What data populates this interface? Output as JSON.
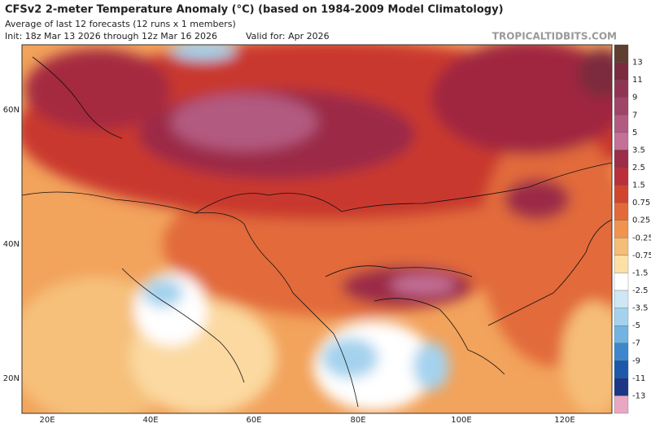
{
  "header": {
    "title": "CFSv2 2-meter Temperature Anomaly (°C) (based on 1984-2009 Model Climatology)",
    "subtitle": "Average of last 12 forecasts (12 runs x 1 members)",
    "init": "Init: 18z Mar 13 2026 through 12z Mar 16 2026",
    "valid": "Valid for: Apr 2026",
    "site": "TROPICALTIDBITS.COM"
  },
  "map": {
    "lon_labels": [
      "20E",
      "40E",
      "60E",
      "80E",
      "100E",
      "120E"
    ],
    "lat_labels": [
      "60N",
      "40N",
      "20N"
    ]
  },
  "colorbar": {
    "labels": [
      "13",
      "11",
      "9",
      "7",
      "5",
      "3.5",
      "2.5",
      "1.5",
      "0.75",
      "0.25",
      "-0.25",
      "-0.75",
      "-1.5",
      "-2.5",
      "-3.5",
      "-5",
      "-7",
      "-9",
      "-11",
      "-13"
    ],
    "colors": [
      "#5e3f30",
      "#7b2b3e",
      "#8f3553",
      "#a04468",
      "#b35a80",
      "#c47097",
      "#9c2c47",
      "#b9303a",
      "#d1452e",
      "#e26a3a",
      "#ef944f",
      "#f6bd78",
      "#fde0a6",
      "#ffffff",
      "#cfe7f5",
      "#a4d2ee",
      "#73b3e1",
      "#3f87cc",
      "#1c5aa9",
      "#1c3785",
      "#e8a8c4"
    ]
  }
}
